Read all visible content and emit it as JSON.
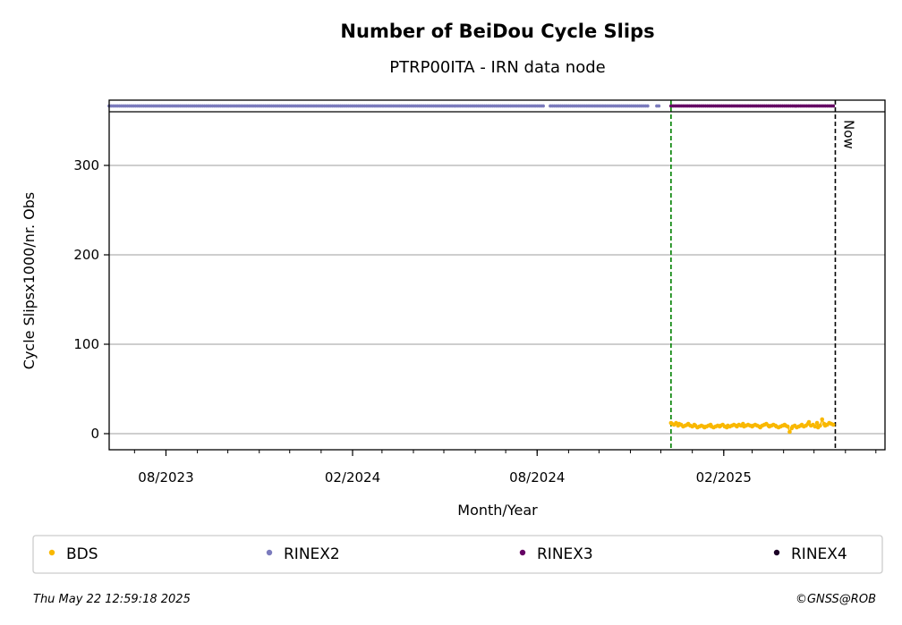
{
  "chart_data": {
    "type": "scatter",
    "title": "Number of BeiDou Cycle Slips",
    "subtitle": "PTRP00ITA - IRN data node",
    "xlabel": "Month/Year",
    "ylabel": "Cycle Slipsx1000/nr. Obs",
    "x_tick_labels": [
      "08/2023",
      "02/2024",
      "08/2024",
      "02/2025"
    ],
    "x_tick_dates": [
      "2023-08-01",
      "2024-02-01",
      "2024-08-01",
      "2025-02-01"
    ],
    "xlim": [
      "2023-06-06",
      "2025-07-10"
    ],
    "y_ticks": [
      0,
      100,
      200,
      300
    ],
    "ylim": [
      -18,
      360
    ],
    "grid": "horizontal",
    "now_label": "Now",
    "now_date": "2025-05-22",
    "start_marker_date": "2024-12-11",
    "series": [
      {
        "name": "BDS",
        "color": "#f9b800",
        "start": "2024-12-11",
        "end": "2025-05-20",
        "values": [
          12,
          11,
          10,
          12,
          9,
          11,
          10,
          8,
          9,
          10,
          11,
          9,
          8,
          10,
          9,
          7,
          8,
          9,
          8,
          7,
          8,
          9,
          10,
          8,
          7,
          8,
          9,
          8,
          9,
          10,
          8,
          7,
          9,
          8,
          9,
          10,
          9,
          8,
          10,
          9,
          11,
          8,
          9,
          10,
          9,
          8,
          9,
          10,
          9,
          8,
          7,
          9,
          10,
          11,
          9,
          8,
          9,
          10,
          9,
          8,
          7,
          8,
          9,
          10,
          9,
          8,
          2,
          6,
          8,
          9,
          7,
          8,
          9,
          10,
          8,
          9,
          11,
          13,
          9,
          10,
          8,
          12,
          7,
          9,
          16,
          11,
          9,
          10,
          12,
          11,
          10
        ]
      },
      {
        "name": "RINEX2",
        "color": "#7b7bbd",
        "segments": [
          [
            "2023-06-06",
            "2024-08-08"
          ],
          [
            "2024-08-14",
            "2024-11-18"
          ],
          [
            "2024-11-27",
            "2024-11-29"
          ]
        ]
      },
      {
        "name": "RINEX3",
        "color": "#650064",
        "segments": [
          [
            "2024-12-11",
            "2025-05-20"
          ]
        ]
      },
      {
        "name": "RINEX4",
        "color": "#1b0026",
        "segments": []
      }
    ]
  },
  "legend": [
    "BDS",
    "RINEX2",
    "RINEX3",
    "RINEX4"
  ],
  "footer": {
    "timestamp": "Thu May 22 12:59:18 2025",
    "credit": "©GNSS@ROB"
  }
}
